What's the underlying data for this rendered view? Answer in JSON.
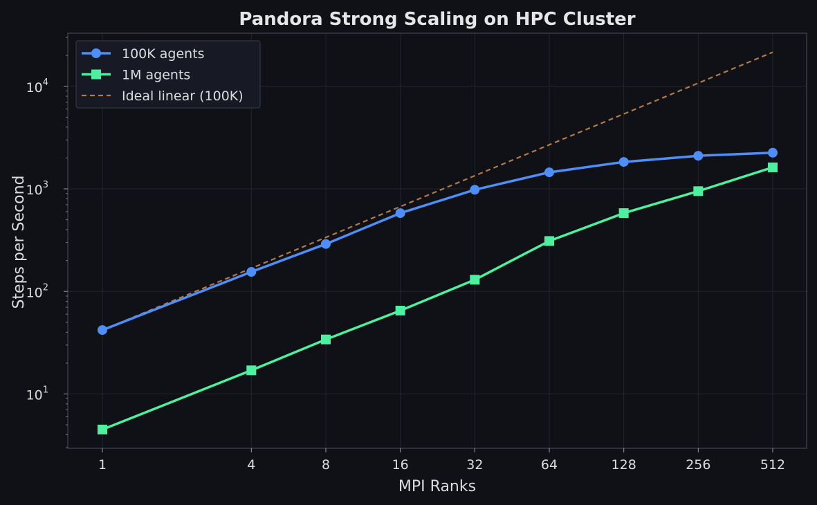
{
  "chart_data": {
    "type": "line",
    "title": "Pandora Strong Scaling on HPC Cluster",
    "xlabel": "MPI Ranks",
    "ylabel": "Steps per Second",
    "x_scale": "log2",
    "y_scale": "log10",
    "x": [
      1,
      4,
      8,
      16,
      32,
      64,
      128,
      256,
      512
    ],
    "x_tick_labels": [
      "1",
      "4",
      "8",
      "16",
      "32",
      "64",
      "128",
      "256",
      "512"
    ],
    "y_ticks": [
      10,
      100,
      1000,
      10000
    ],
    "y_tick_labels": [
      {
        "base": "10",
        "exp": "1"
      },
      {
        "base": "10",
        "exp": "2"
      },
      {
        "base": "10",
        "exp": "3"
      },
      {
        "base": "10",
        "exp": "4"
      }
    ],
    "ylim": [
      3,
      32000
    ],
    "grid": true,
    "legend_position": "top-left",
    "series": [
      {
        "name": "100K agents",
        "marker": "circle",
        "style": "solid",
        "color": "#4f8ef7",
        "values": [
          42,
          155,
          290,
          580,
          980,
          1450,
          1830,
          2100,
          2250
        ]
      },
      {
        "name": "1M agents",
        "marker": "square",
        "style": "solid",
        "color": "#4ef0a0",
        "values": [
          4.5,
          17,
          34,
          65,
          130,
          310,
          580,
          950,
          1620
        ]
      },
      {
        "name": "Ideal linear (100K)",
        "marker": "none",
        "style": "dashed",
        "color": "#b07a4a",
        "values": [
          42,
          168,
          336,
          672,
          1344,
          2688,
          5376,
          10752,
          21504
        ]
      }
    ]
  },
  "colors": {
    "background": "#101116",
    "plot_background": "#101116",
    "grid": "#23252d",
    "axes": "#3a3c46",
    "text": "#dcdcdc",
    "legend_background": "#171925",
    "legend_border": "#3a3c4e"
  }
}
